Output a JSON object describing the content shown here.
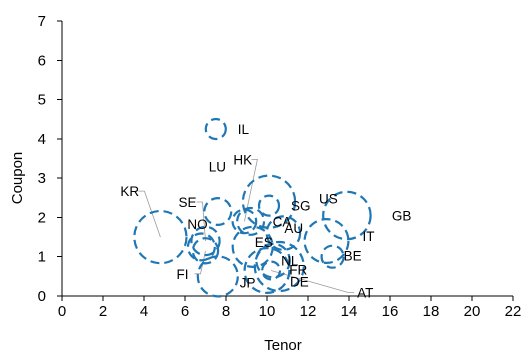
{
  "chart_data": {
    "type": "scatter",
    "title": "",
    "xlabel": "Tenor",
    "ylabel": "Coupon",
    "xlim": [
      0,
      22
    ],
    "ylim": [
      0,
      7
    ],
    "x_ticks": [
      0,
      2,
      4,
      6,
      8,
      10,
      12,
      14,
      16,
      18,
      20,
      22
    ],
    "y_ticks": [
      0,
      1,
      2,
      3,
      4,
      5,
      6,
      7
    ],
    "grid": false,
    "legend": "none",
    "bubble_color": "#1f77b4",
    "bubble_style": "dashed outline",
    "points": [
      {
        "label": "IL",
        "x": 7.5,
        "y": 4.25,
        "size": 0.25
      },
      {
        "label": "HK",
        "x": 8.9,
        "y": 1.9,
        "size": 0.35
      },
      {
        "label": "LU",
        "x": 7.6,
        "y": 2.15,
        "size": 0.45
      },
      {
        "label": "KR",
        "x": 4.8,
        "y": 1.5,
        "size": 1.7
      },
      {
        "label": "SE",
        "x": 7.0,
        "y": 1.4,
        "size": 0.5
      },
      {
        "label": "NO",
        "x": 6.8,
        "y": 1.25,
        "size": 0.45
      },
      {
        "label": "FI",
        "x": 7.0,
        "y": 1.15,
        "size": 0.4
      },
      {
        "label": "SG",
        "x": 10.1,
        "y": 2.3,
        "size": 0.25
      },
      {
        "label": "US",
        "x": 10.1,
        "y": 2.4,
        "size": 1.7
      },
      {
        "label": "CA",
        "x": 9.2,
        "y": 1.9,
        "size": 0.45
      },
      {
        "label": "GB",
        "x": 13.9,
        "y": 2.05,
        "size": 1.4
      },
      {
        "label": "AU",
        "x": 10.8,
        "y": 1.6,
        "size": 0.7
      },
      {
        "label": "ES",
        "x": 9.3,
        "y": 1.25,
        "size": 1.0
      },
      {
        "label": "IT",
        "x": 12.9,
        "y": 1.4,
        "size": 1.2
      },
      {
        "label": "BE",
        "x": 13.2,
        "y": 1.0,
        "size": 0.3
      },
      {
        "label": "NL",
        "x": 10.3,
        "y": 0.9,
        "size": 0.7
      },
      {
        "label": "FR",
        "x": 10.6,
        "y": 0.75,
        "size": 1.5
      },
      {
        "label": "JP",
        "x": 7.6,
        "y": 0.5,
        "size": 1.0
      },
      {
        "label": "DE",
        "x": 10.0,
        "y": 0.65,
        "size": 1.25
      },
      {
        "label": "AT",
        "x": 10.2,
        "y": 0.65,
        "size": 0.2
      }
    ]
  }
}
